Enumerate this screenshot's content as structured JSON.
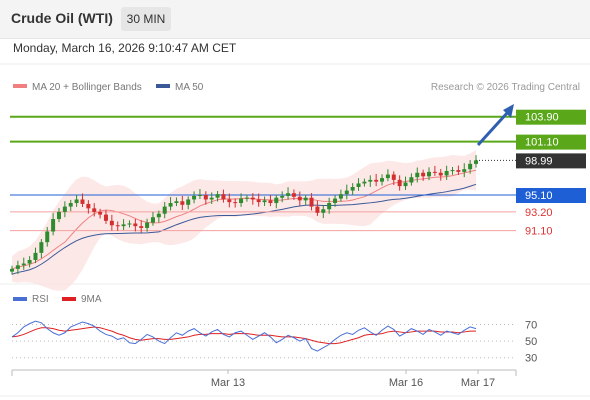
{
  "header": {
    "title": "Crude Oil (WTI)",
    "timeframe": "30 MIN"
  },
  "datetime": "Monday, March 16, 2026 9:10:47 AM CET",
  "chart_data": {
    "type": "candlestick",
    "legend": [
      {
        "label": "MA 20 + Bollinger Bands",
        "color": "#f08080"
      },
      {
        "label": "MA 50",
        "color": "#3b5998"
      }
    ],
    "credit": "Research © 2026 Trading Central",
    "price_axis": {
      "min": 86,
      "max": 106
    },
    "last_price": {
      "label": "98.99",
      "value": 98.99
    },
    "levels": [
      {
        "label": "103.90",
        "value": 103.9,
        "kind": "resistance"
      },
      {
        "label": "101.10",
        "value": 101.1,
        "kind": "resistance"
      },
      {
        "label": "95.10",
        "value": 95.1,
        "kind": "pivot"
      },
      {
        "label": "93.20",
        "value": 93.2,
        "kind": "support"
      },
      {
        "label": "91.10",
        "value": 91.1,
        "kind": "support"
      }
    ],
    "x_labels": [
      "Mar 13",
      "Mar 16",
      "Mar 17"
    ],
    "candles_close": [
      86.8,
      87.2,
      87.4,
      87.8,
      88.6,
      89.8,
      91.0,
      92.4,
      93.2,
      93.8,
      94.2,
      94.6,
      94.1,
      93.6,
      93.2,
      92.9,
      92.2,
      91.7,
      91.6,
      91.8,
      91.9,
      91.6,
      91.4,
      92.0,
      92.6,
      93.0,
      93.8,
      94.2,
      94.4,
      94.0,
      94.6,
      95.0,
      95.1,
      94.6,
      94.8,
      95.2,
      94.6,
      94.3,
      94.2,
      94.7,
      94.8,
      94.6,
      94.3,
      94.5,
      94.2,
      94.8,
      95.0,
      95.3,
      94.9,
      94.5,
      94.8,
      93.8,
      93.1,
      93.5,
      94.2,
      94.7,
      95.2,
      95.6,
      96.0,
      96.4,
      96.6,
      96.8,
      96.6,
      97.0,
      97.4,
      96.8,
      96.1,
      96.5,
      97.1,
      97.6,
      97.2,
      97.7,
      97.6,
      97.3,
      97.8,
      97.9,
      97.7,
      98.0,
      98.6,
      98.99
    ],
    "rsi": {
      "legend": [
        {
          "label": "RSI",
          "color": "#4a6fd4"
        },
        {
          "label": "9MA",
          "color": "#e02020"
        }
      ],
      "axis_labels": [
        "70",
        "50",
        "30"
      ],
      "levels": [
        70,
        50,
        30
      ],
      "rsi_values": [
        55,
        60,
        67,
        71,
        74,
        72,
        65,
        60,
        57,
        60,
        67,
        70,
        73,
        71,
        68,
        62,
        58,
        56,
        52,
        54,
        48,
        47,
        52,
        58,
        55,
        50,
        47,
        54,
        60,
        57,
        62,
        65,
        60,
        56,
        61,
        64,
        58,
        55,
        60,
        62,
        57,
        52,
        56,
        60,
        55,
        48,
        52,
        57,
        54,
        50,
        53,
        41,
        38,
        42,
        46,
        52,
        57,
        60,
        58,
        63,
        66,
        61,
        57,
        63,
        68,
        64,
        56,
        60,
        65,
        62,
        58,
        64,
        61,
        57,
        62,
        60,
        58,
        63,
        67,
        65
      ],
      "ma_values": [
        55,
        56,
        58,
        61,
        64,
        66,
        66,
        65,
        63,
        62,
        63,
        64,
        65,
        66,
        67,
        66,
        64,
        62,
        59,
        57,
        54,
        52,
        51,
        52,
        53,
        53,
        52,
        52,
        53,
        54,
        55,
        57,
        58,
        58,
        59,
        59,
        59,
        58,
        59,
        59,
        59,
        58,
        57,
        57,
        57,
        56,
        55,
        55,
        55,
        54,
        53,
        51,
        49,
        48,
        47,
        47,
        48,
        50,
        52,
        54,
        57,
        58,
        58,
        59,
        61,
        62,
        61,
        60,
        61,
        62,
        62,
        62,
        62,
        61,
        61,
        61,
        60,
        61,
        62,
        62
      ]
    }
  }
}
